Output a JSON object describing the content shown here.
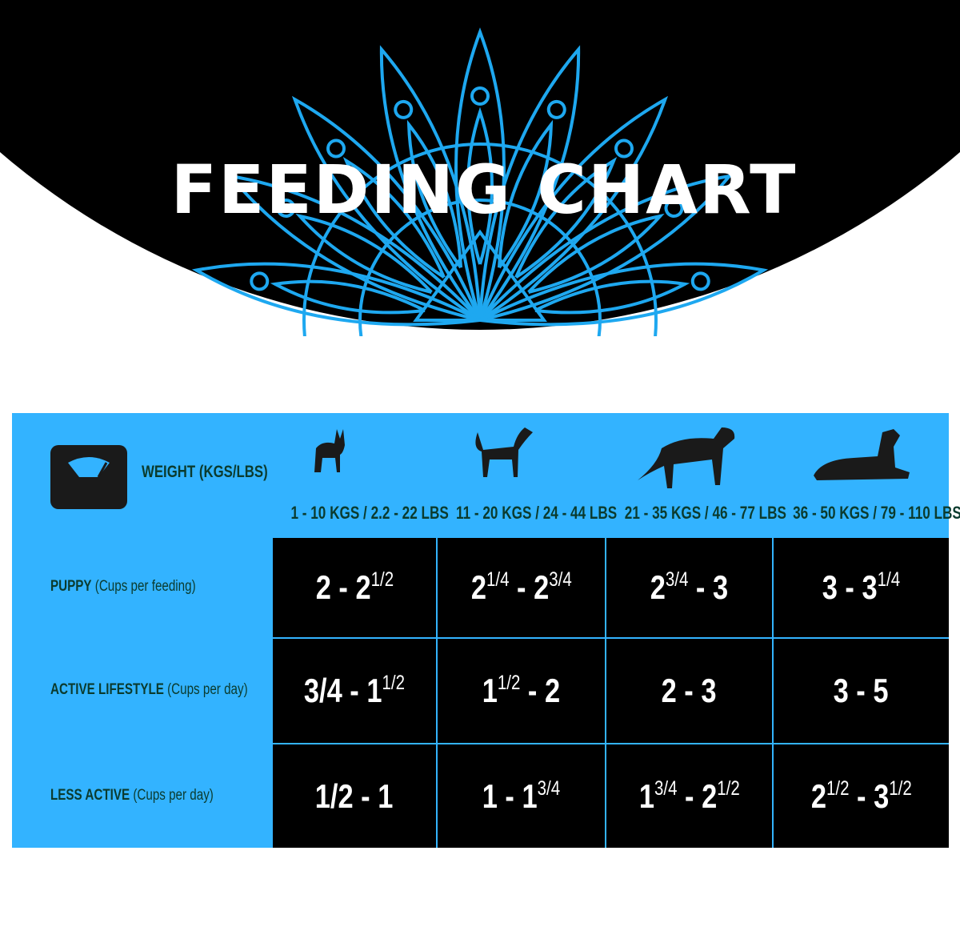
{
  "title": "FEEDING CHART",
  "colors": {
    "accent": "#33b3ff",
    "header_bg": "#000000",
    "label_text": "#0b3b2e"
  },
  "weight_label": "WEIGHT (KGS/LBS)",
  "weight_icon": "scale-icon",
  "columns": [
    {
      "label": "1 - 10 KGS / 2.2 - 22 LBS",
      "icon": "small-dog-icon"
    },
    {
      "label": "11 - 20 KGS / 24 - 44 LBS",
      "icon": "medium-dog-icon"
    },
    {
      "label": "21 - 35 KGS / 46 - 77 LBS",
      "icon": "large-dog-icon"
    },
    {
      "label": "36 - 50 KGS / 79 - 110 LBS",
      "icon": "lying-dog-icon"
    }
  ],
  "rows": [
    {
      "label_bold": "PUPPY",
      "label_rest": " (Cups per feeding)",
      "cells": [
        [
          {
            "t": "2 - 2"
          },
          {
            "sup": "1/2"
          }
        ],
        [
          {
            "t": "2"
          },
          {
            "sup": "1/4"
          },
          {
            "t": " - 2"
          },
          {
            "sup": "3/4"
          }
        ],
        [
          {
            "t": "2"
          },
          {
            "sup": "3/4"
          },
          {
            "t": " - 3"
          }
        ],
        [
          {
            "t": "3 - 3"
          },
          {
            "sup": "1/4"
          }
        ]
      ]
    },
    {
      "label_bold": "ACTIVE LIFESTYLE",
      "label_rest": " (Cups per day)",
      "cells": [
        [
          {
            "t": "3/4 - 1"
          },
          {
            "sup": "1/2"
          }
        ],
        [
          {
            "t": "1"
          },
          {
            "sup": "1/2"
          },
          {
            "t": " - 2"
          }
        ],
        [
          {
            "t": "2 - 3"
          }
        ],
        [
          {
            "t": "3 - 5"
          }
        ]
      ]
    },
    {
      "label_bold": "LESS ACTIVE",
      "label_rest": " (Cups per day)",
      "cells": [
        [
          {
            "t": "1/2 - 1"
          }
        ],
        [
          {
            "t": "1 - 1"
          },
          {
            "sup": "3/4"
          }
        ],
        [
          {
            "t": "1"
          },
          {
            "sup": "3/4"
          },
          {
            "t": " - 2"
          },
          {
            "sup": "1/2"
          }
        ],
        [
          {
            "t": "2"
          },
          {
            "sup": "1/2"
          },
          {
            "t": " - 3"
          },
          {
            "sup": "1/2"
          }
        ]
      ]
    }
  ]
}
